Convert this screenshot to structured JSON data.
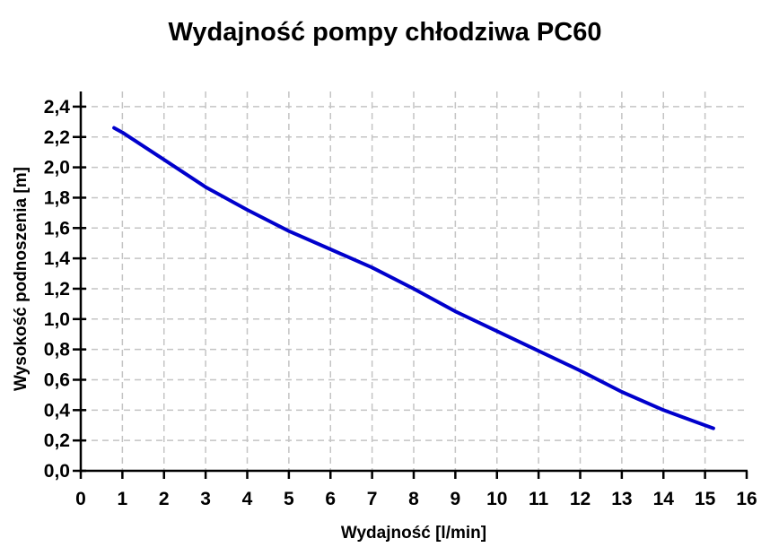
{
  "chart_data": {
    "type": "line",
    "title": "Wydajność pompy chłodziwa PC60",
    "xlabel": "Wydajność [l/min]",
    "ylabel": "Wysokość podnoszenia [m]",
    "xlim": [
      0,
      16
    ],
    "ylim": [
      0,
      2.5
    ],
    "x_ticks": [
      0,
      1,
      2,
      3,
      4,
      5,
      6,
      7,
      8,
      9,
      10,
      11,
      12,
      13,
      14,
      15,
      16
    ],
    "x_tick_labels": [
      "0",
      "1",
      "2",
      "3",
      "4",
      "5",
      "6",
      "7",
      "8",
      "9",
      "10",
      "11",
      "12",
      "13",
      "14",
      "15",
      "16"
    ],
    "y_ticks": [
      0,
      0.2,
      0.4,
      0.6,
      0.8,
      1.0,
      1.2,
      1.4,
      1.6,
      1.8,
      2.0,
      2.2,
      2.4
    ],
    "y_tick_labels": [
      "0,0",
      "0,2",
      "0,4",
      "0,6",
      "0,8",
      "1,0",
      "1,2",
      "1,4",
      "1,6",
      "1,8",
      "2,0",
      "2,2",
      "2,4"
    ],
    "decimal_separator": ",",
    "grid": true,
    "grid_style": "dashed",
    "legend": false,
    "colors": {
      "line": "#0000CC",
      "grid": "#C4C4C4",
      "axis": "#000000",
      "text": "#000000",
      "background": "#FFFFFF"
    },
    "series": [
      {
        "x": [
          0.8,
          1,
          2,
          3,
          4,
          5,
          6,
          7,
          8,
          9,
          10,
          11,
          12,
          13,
          14,
          15,
          15.2
        ],
        "y": [
          2.26,
          2.23,
          2.05,
          1.87,
          1.72,
          1.58,
          1.46,
          1.34,
          1.2,
          1.05,
          0.92,
          0.79,
          0.66,
          0.52,
          0.4,
          0.3,
          0.28
        ]
      }
    ]
  }
}
